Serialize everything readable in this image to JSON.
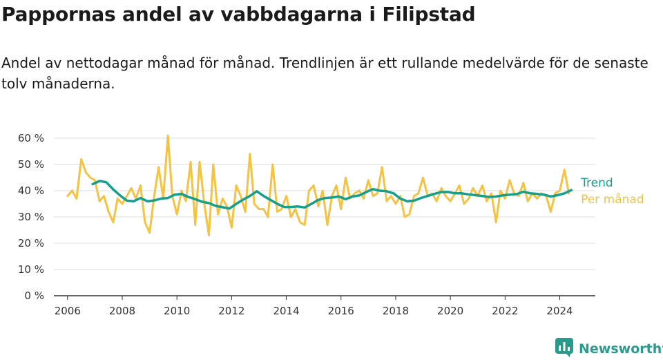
{
  "title": "Pappornas andel av vabbdagarna i Filipstad",
  "subtitle": "Andel av nettodagar månad för månad. Trendlinjen är ett rullande medelvärde för de senaste tolv månaderna.",
  "brand": {
    "name": "Newsworthy",
    "icon": "newsworthy-logo-icon",
    "color": "#2a9a8c"
  },
  "chart_data": {
    "type": "line",
    "xlim": [
      2005.5,
      2025.3
    ],
    "ylim": [
      0,
      60
    ],
    "y_ticks": [
      0,
      10,
      20,
      30,
      40,
      50,
      60
    ],
    "y_tick_labels": [
      "0 %",
      "10 %",
      "20 %",
      "30 %",
      "40 %",
      "50 %",
      "60 %"
    ],
    "x_ticks": [
      2006,
      2008,
      2010,
      2012,
      2014,
      2016,
      2018,
      2020,
      2022,
      2024
    ],
    "x_tick_labels": [
      "2006",
      "2008",
      "2010",
      "2012",
      "2014",
      "2016",
      "2018",
      "2020",
      "2022",
      "2024"
    ],
    "grid": "horizontal",
    "legend_position": "right, at line ends",
    "series": [
      {
        "name": "Per månad",
        "color": "#f5c242",
        "x": [
          2006.0,
          2006.17,
          2006.33,
          2006.5,
          2006.67,
          2006.83,
          2007.0,
          2007.17,
          2007.33,
          2007.5,
          2007.67,
          2007.83,
          2008.0,
          2008.17,
          2008.33,
          2008.5,
          2008.67,
          2008.83,
          2009.0,
          2009.17,
          2009.33,
          2009.5,
          2009.67,
          2009.83,
          2010.0,
          2010.17,
          2010.33,
          2010.5,
          2010.67,
          2010.83,
          2011.0,
          2011.17,
          2011.33,
          2011.5,
          2011.67,
          2011.83,
          2012.0,
          2012.17,
          2012.33,
          2012.5,
          2012.67,
          2012.83,
          2013.0,
          2013.17,
          2013.33,
          2013.5,
          2013.67,
          2013.83,
          2014.0,
          2014.17,
          2014.33,
          2014.5,
          2014.67,
          2014.83,
          2015.0,
          2015.17,
          2015.33,
          2015.5,
          2015.67,
          2015.83,
          2016.0,
          2016.17,
          2016.33,
          2016.5,
          2016.67,
          2016.83,
          2017.0,
          2017.17,
          2017.33,
          2017.5,
          2017.67,
          2017.83,
          2018.0,
          2018.17,
          2018.33,
          2018.5,
          2018.67,
          2018.83,
          2019.0,
          2019.17,
          2019.33,
          2019.5,
          2019.67,
          2019.83,
          2020.0,
          2020.17,
          2020.33,
          2020.5,
          2020.67,
          2020.83,
          2021.0,
          2021.17,
          2021.33,
          2021.5,
          2021.67,
          2021.83,
          2022.0,
          2022.17,
          2022.33,
          2022.5,
          2022.67,
          2022.83,
          2023.0,
          2023.17,
          2023.33,
          2023.5,
          2023.67,
          2023.83,
          2024.0,
          2024.17,
          2024.33
        ],
        "values": [
          38,
          40,
          37,
          52,
          47,
          45,
          44,
          36,
          38,
          32,
          28,
          37,
          35,
          38,
          41,
          37,
          42,
          28,
          24,
          38,
          49,
          37,
          61,
          38,
          31,
          40,
          36,
          51,
          27,
          51,
          35,
          23,
          50,
          31,
          37,
          34,
          26,
          42,
          38,
          32,
          54,
          35,
          33,
          33,
          30,
          50,
          32,
          33,
          38,
          30,
          33,
          28,
          27,
          40,
          42,
          34,
          40,
          27,
          38,
          42,
          33,
          45,
          37,
          39,
          40,
          37,
          44,
          38,
          39,
          49,
          36,
          38,
          35,
          38,
          30,
          31,
          38,
          39,
          45,
          38,
          39,
          36,
          41,
          38,
          36,
          39,
          42,
          35,
          37,
          41,
          38,
          42,
          36,
          39,
          28,
          40,
          37,
          44,
          39,
          38,
          43,
          36,
          39,
          37,
          39,
          38,
          32,
          39,
          40,
          48,
          39
        ]
      },
      {
        "name": "Trend",
        "color": "#16a08c",
        "x": [
          2006.92,
          2007.17,
          2007.42,
          2007.67,
          2007.92,
          2008.17,
          2008.42,
          2008.67,
          2008.92,
          2009.17,
          2009.42,
          2009.67,
          2009.92,
          2010.17,
          2010.42,
          2010.67,
          2010.92,
          2011.17,
          2011.42,
          2011.67,
          2011.92,
          2012.17,
          2012.42,
          2012.67,
          2012.92,
          2013.17,
          2013.42,
          2013.67,
          2013.92,
          2014.17,
          2014.42,
          2014.67,
          2014.92,
          2015.17,
          2015.42,
          2015.67,
          2015.92,
          2016.17,
          2016.42,
          2016.67,
          2016.92,
          2017.17,
          2017.42,
          2017.67,
          2017.92,
          2018.17,
          2018.42,
          2018.67,
          2018.92,
          2019.17,
          2019.42,
          2019.67,
          2019.92,
          2020.17,
          2020.42,
          2020.67,
          2020.92,
          2021.17,
          2021.42,
          2021.67,
          2021.92,
          2022.17,
          2022.42,
          2022.67,
          2022.92,
          2023.17,
          2023.42,
          2023.67,
          2023.92,
          2024.17,
          2024.42
        ],
        "values": [
          42.5,
          43.7,
          43.2,
          40.5,
          38.2,
          36.2,
          36.0,
          37.2,
          36.0,
          36.3,
          37.0,
          37.2,
          38.5,
          38.8,
          37.6,
          36.8,
          35.8,
          35.3,
          34.2,
          33.7,
          33.2,
          35.0,
          36.6,
          38.0,
          39.8,
          38.0,
          36.5,
          35.0,
          33.8,
          33.8,
          34.0,
          33.6,
          35.0,
          36.5,
          37.2,
          37.4,
          37.8,
          36.8,
          37.8,
          38.2,
          39.5,
          40.6,
          40.0,
          39.8,
          39.0,
          37.0,
          36.0,
          36.2,
          37.2,
          38.0,
          38.8,
          39.5,
          39.5,
          39.0,
          39.0,
          38.6,
          38.3,
          38.0,
          37.6,
          37.8,
          38.2,
          38.5,
          38.7,
          39.6,
          39.0,
          38.8,
          38.5,
          37.8,
          38.3,
          39.0,
          40.2
        ]
      }
    ]
  }
}
